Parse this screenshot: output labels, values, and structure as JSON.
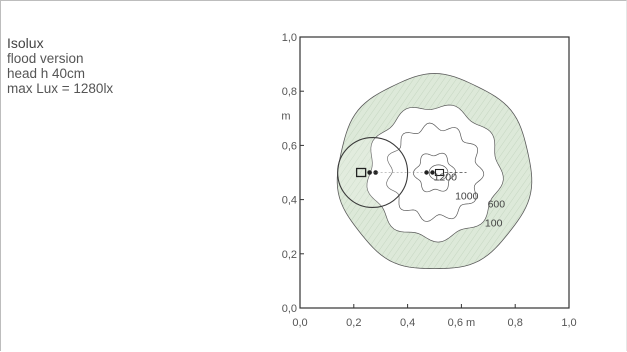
{
  "caption": {
    "title": "Isolux",
    "lines": [
      "flood version",
      "head h 40cm",
      "max Lux = 1280lx"
    ]
  },
  "colors": {
    "band_fill": "#dde9d9",
    "line": "#5a5a5a",
    "axis": "#333333",
    "text": "#555555"
  },
  "chart_data": {
    "type": "contour",
    "title": "",
    "xlabel": "m",
    "ylabel": "m",
    "xlim": [
      0,
      1.0
    ],
    "ylim": [
      0,
      1.0
    ],
    "x_ticks": [
      {
        "value": 0.0,
        "label": "0,0"
      },
      {
        "value": 0.2,
        "label": "0,2"
      },
      {
        "value": 0.4,
        "label": "0,4"
      },
      {
        "value": 0.6,
        "label": "0,6 m"
      },
      {
        "value": 0.8,
        "label": "0,8"
      },
      {
        "value": 1.0,
        "label": "1,0"
      }
    ],
    "y_ticks": [
      {
        "value": 0.0,
        "label": "0,0"
      },
      {
        "value": 0.2,
        "label": "0,2"
      },
      {
        "value": 0.4,
        "label": "0,4"
      },
      {
        "value": 0.6,
        "label": "0,6"
      },
      {
        "value": 0.8,
        "label": "0,8"
      },
      {
        "value": 1.0,
        "label": "1,0"
      }
    ],
    "y_unit_label": "m",
    "center": [
      0.5,
      0.5
    ],
    "max_lux": 1280,
    "contours": [
      {
        "label": "100",
        "radius": 0.36,
        "label_pos": [
          0.72,
          0.3
        ]
      },
      {
        "label": "600",
        "radius": 0.245,
        "label_pos": [
          0.73,
          0.37
        ]
      },
      {
        "label": "1000",
        "radius": 0.17,
        "label_pos": [
          0.62,
          0.4
        ]
      },
      {
        "label": "1200",
        "radius": 0.07,
        "label_pos": [
          0.54,
          0.47
        ]
      }
    ],
    "lamp": {
      "center": [
        0.27,
        0.5
      ],
      "radius": 0.13
    }
  }
}
